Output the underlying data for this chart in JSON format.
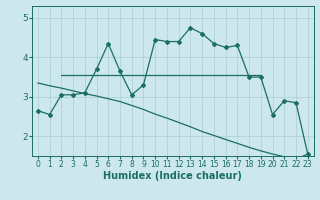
{
  "xlabel": "Humidex (Indice chaleur)",
  "ylabel": "",
  "bg_color": "#cce8ec",
  "grid_color": "#aacdd4",
  "line_color": "#1a6e64",
  "xlim": [
    -0.5,
    23.5
  ],
  "ylim": [
    1.5,
    5.3
  ],
  "xticks": [
    0,
    1,
    2,
    3,
    4,
    5,
    6,
    7,
    8,
    9,
    10,
    11,
    12,
    13,
    14,
    15,
    16,
    17,
    18,
    19,
    20,
    21,
    22,
    23
  ],
  "yticks": [
    2,
    3,
    4,
    5
  ],
  "line1_x": [
    0,
    1,
    2,
    3,
    4,
    5,
    6,
    7,
    8,
    9,
    10,
    11,
    12,
    13,
    14,
    15,
    16,
    17,
    18,
    19,
    20,
    21,
    22,
    23
  ],
  "line1_y": [
    2.65,
    2.55,
    3.05,
    3.05,
    3.1,
    3.7,
    4.35,
    3.65,
    3.05,
    3.3,
    4.45,
    4.4,
    4.4,
    4.75,
    4.6,
    4.35,
    4.25,
    4.3,
    3.5,
    3.5,
    2.55,
    2.9,
    2.85,
    1.55
  ],
  "line2_x": [
    2,
    3,
    4,
    5,
    6,
    7,
    8,
    9,
    10,
    11,
    12,
    13,
    14,
    15,
    16,
    17,
    18,
    19
  ],
  "line2_y": [
    3.55,
    3.55,
    3.55,
    3.55,
    3.55,
    3.55,
    3.55,
    3.55,
    3.55,
    3.55,
    3.55,
    3.55,
    3.55,
    3.55,
    3.55,
    3.55,
    3.55,
    3.55
  ],
  "line3_x": [
    0,
    1,
    2,
    3,
    4,
    5,
    6,
    7,
    8,
    9,
    10,
    11,
    12,
    13,
    14,
    15,
    16,
    17,
    18,
    19,
    20,
    21,
    22,
    23
  ],
  "line3_y": [
    3.35,
    3.28,
    3.22,
    3.15,
    3.08,
    3.02,
    2.95,
    2.88,
    2.78,
    2.68,
    2.56,
    2.46,
    2.35,
    2.24,
    2.12,
    2.02,
    1.92,
    1.82,
    1.72,
    1.63,
    1.55,
    1.48,
    1.42,
    1.55
  ]
}
